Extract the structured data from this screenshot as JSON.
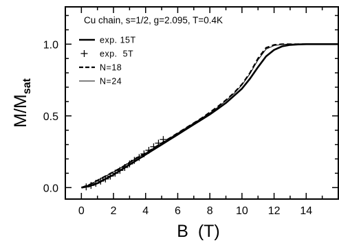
{
  "chart_data": {
    "type": "line",
    "title": "Cu chain, s=1/2, g=2.095, T=0.4K",
    "xlabel": "B  (T)",
    "ylabel_main": "M/M",
    "ylabel_sub": "sat",
    "xlim": [
      -1.0,
      16.0
    ],
    "ylim": [
      -0.08,
      1.26
    ],
    "xticks": [
      0,
      2,
      4,
      6,
      8,
      10,
      12,
      14
    ],
    "xtick_labels": [
      "0",
      "2",
      "4",
      "6",
      "8",
      "10",
      "12",
      "14"
    ],
    "yticks": [
      0.0,
      0.5,
      1.0
    ],
    "ytick_labels": [
      "0.0",
      "0.5",
      "1.0"
    ],
    "grid": false,
    "legend_position": "top-left",
    "series": [
      {
        "name": "exp. 15T",
        "style": "thick-solid",
        "x": [
          0,
          0.5,
          1,
          1.5,
          2,
          2.5,
          3,
          3.5,
          4,
          4.5,
          5,
          5.5,
          6,
          6.5,
          7,
          7.5,
          8,
          8.5,
          9,
          9.5,
          10,
          10.5,
          11,
          11.5,
          12,
          12.5,
          13,
          13.5,
          14,
          14.5,
          15,
          16
        ],
        "y": [
          0.0,
          0.01,
          0.03,
          0.06,
          0.09,
          0.125,
          0.16,
          0.195,
          0.23,
          0.265,
          0.3,
          0.335,
          0.37,
          0.405,
          0.44,
          0.475,
          0.51,
          0.55,
          0.59,
          0.64,
          0.69,
          0.76,
          0.84,
          0.915,
          0.96,
          0.985,
          0.995,
          0.998,
          1.0,
          1.0,
          1.0,
          1.0
        ]
      },
      {
        "name": "exp.  5T",
        "style": "plus-markers",
        "x": [
          0.3,
          0.6,
          0.9,
          1.2,
          1.5,
          1.8,
          2.1,
          2.4,
          2.7,
          3.0,
          3.3,
          3.6,
          3.9,
          4.2,
          4.5,
          4.8,
          5.1
        ],
        "y": [
          0.005,
          0.015,
          0.03,
          0.045,
          0.06,
          0.08,
          0.1,
          0.12,
          0.14,
          0.165,
          0.19,
          0.21,
          0.235,
          0.26,
          0.285,
          0.31,
          0.335
        ]
      },
      {
        "name": "N=18",
        "style": "dashed",
        "x": [
          0,
          0.5,
          1,
          1.5,
          2,
          2.5,
          3,
          3.5,
          4,
          4.5,
          5,
          5.5,
          6,
          6.5,
          7,
          7.5,
          8,
          8.5,
          9,
          9.5,
          10,
          10.5,
          11,
          11.5,
          12,
          12.5,
          13,
          14,
          15,
          16
        ],
        "y": [
          0.0,
          0.02,
          0.05,
          0.08,
          0.11,
          0.14,
          0.175,
          0.21,
          0.24,
          0.275,
          0.31,
          0.345,
          0.38,
          0.415,
          0.45,
          0.485,
          0.525,
          0.565,
          0.61,
          0.66,
          0.72,
          0.8,
          0.9,
          0.975,
          0.995,
          1.0,
          1.0,
          1.0,
          1.0,
          1.0
        ]
      },
      {
        "name": "N=24",
        "style": "thin-solid",
        "x": [
          0,
          0.5,
          1,
          1.5,
          2,
          2.5,
          3,
          3.5,
          4,
          4.5,
          5,
          5.5,
          6,
          6.5,
          7,
          7.5,
          8,
          8.5,
          9,
          9.5,
          10,
          10.5,
          11,
          11.5,
          12,
          12.5,
          13,
          14,
          15,
          16
        ],
        "y": [
          0.0,
          0.02,
          0.05,
          0.08,
          0.11,
          0.14,
          0.175,
          0.21,
          0.24,
          0.275,
          0.31,
          0.345,
          0.38,
          0.415,
          0.45,
          0.485,
          0.52,
          0.56,
          0.605,
          0.655,
          0.715,
          0.795,
          0.89,
          0.965,
          0.99,
          0.998,
          1.0,
          1.0,
          1.0,
          1.0
        ]
      }
    ]
  }
}
